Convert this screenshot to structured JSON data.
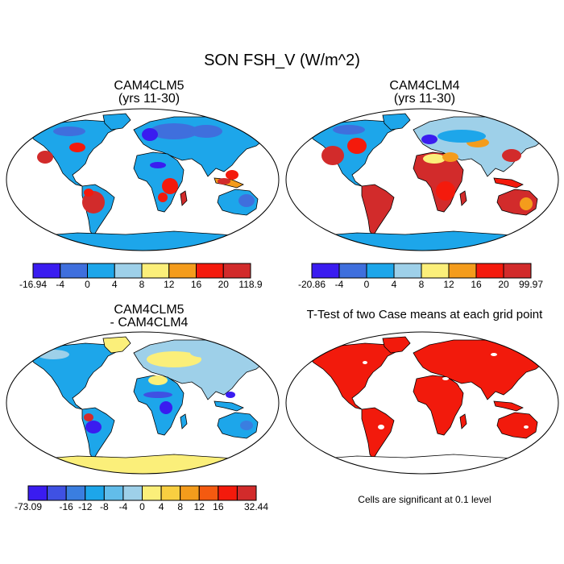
{
  "title": "SON FSH_V (W/m^2)",
  "panels": [
    {
      "title_line1": "CAM4CLM5",
      "title_line2": "(yrs 11-30)"
    },
    {
      "title_line1": "CAM4CLM4",
      "title_line2": "(yrs 11-30)"
    },
    {
      "title_line1": "CAM4CLM5",
      "title_line2": "- CAM4CLM4"
    },
    {
      "title_line1": "T-Test of two Case means at each grid point",
      "title_line2": ""
    }
  ],
  "legends": [
    {
      "labels": [
        "-16.94",
        "-4",
        "0",
        "4",
        "8",
        "12",
        "16",
        "20",
        "118.9"
      ],
      "colors": [
        "#3a1cf0",
        "#3f6fdd",
        "#1da6ea",
        "#9ed0e9",
        "#fbef7a",
        "#f49c1c",
        "#f41a0c",
        "#d22b2b"
      ]
    },
    {
      "labels": [
        "-20.86",
        "-4",
        "0",
        "4",
        "8",
        "12",
        "16",
        "20",
        "99.97"
      ],
      "colors": [
        "#3a1cf0",
        "#3f6fdd",
        "#1da6ea",
        "#9ed0e9",
        "#fbef7a",
        "#f49c1c",
        "#f41a0c",
        "#d22b2b"
      ]
    },
    {
      "labels": [
        "-73.09",
        "-16",
        "-12",
        "-8",
        "-4",
        "0",
        "4",
        "8",
        "12",
        "16",
        "32.44"
      ],
      "colors": [
        "#3a1cf0",
        "#3f51e3",
        "#3a7ee0",
        "#1da6ea",
        "#62bdea",
        "#9ed0e9",
        "#fbef7a",
        "#f8cf41",
        "#f49c1c",
        "#f45a10",
        "#f41a0c",
        "#d22b2b"
      ],
      "label_positions": [
        0,
        2,
        3,
        4,
        5,
        6,
        7,
        8,
        9,
        10,
        12
      ]
    }
  ],
  "note": "Cells are significant at 0.1 level",
  "colors": {
    "p1_ocean": "#ffffff",
    "sig_red": "#f21a0c",
    "coast": "#000000"
  }
}
